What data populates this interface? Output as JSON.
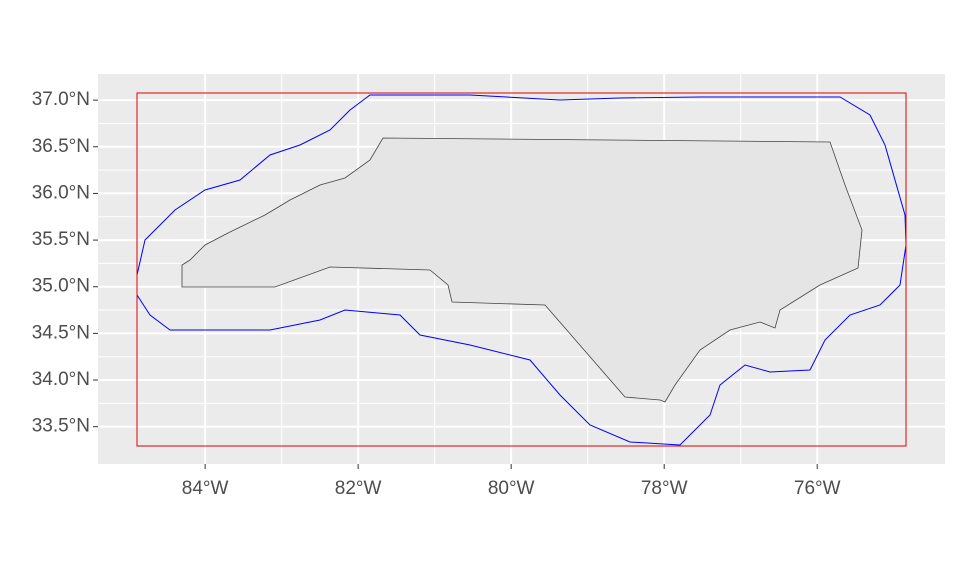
{
  "chart_data": {
    "type": "map",
    "xlim": [
      -85.4,
      -74.33
    ],
    "ylim": [
      33.1,
      37.28
    ],
    "xticks": [
      {
        "value": -84,
        "label": "84°W"
      },
      {
        "value": -82,
        "label": "82°W"
      },
      {
        "value": -80,
        "label": "80°W"
      },
      {
        "value": -78,
        "label": "78°W"
      },
      {
        "value": -76,
        "label": "76°W"
      }
    ],
    "yticks": [
      {
        "value": 33.5,
        "label": "33.5°N"
      },
      {
        "value": 34,
        "label": "34.0°N"
      },
      {
        "value": 34.5,
        "label": "34.5°N"
      },
      {
        "value": 35,
        "label": "35.0°N"
      },
      {
        "value": 35.5,
        "label": "35.5°N"
      },
      {
        "value": 36,
        "label": "36.0°N"
      },
      {
        "value": 36.5,
        "label": "36.5°N"
      },
      {
        "value": 37,
        "label": "37.0°N"
      }
    ],
    "grid": true
  }
}
